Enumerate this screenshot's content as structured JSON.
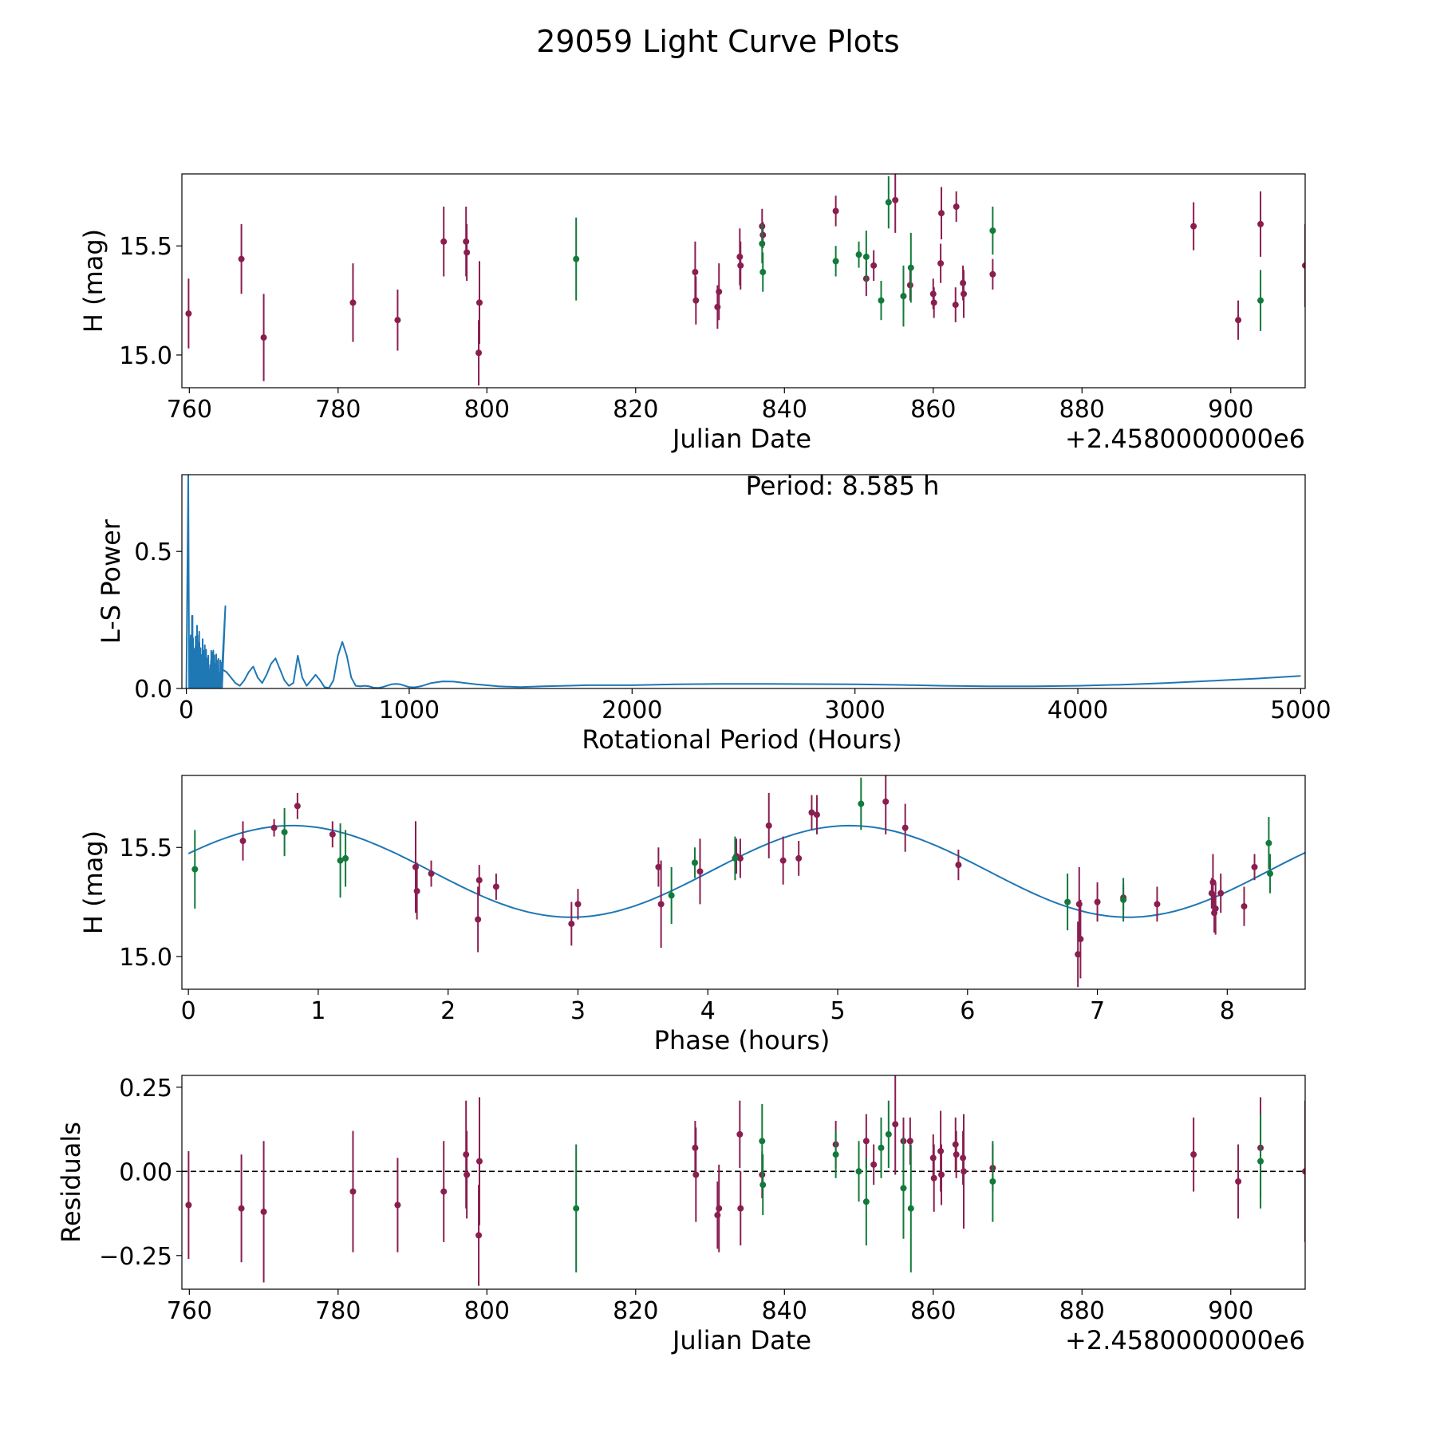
{
  "title": "29059 Light Curve Plots",
  "colors": {
    "red": "#8a1e50",
    "green": "#127a3b",
    "line": "#1f77b4",
    "axis": "#000000"
  },
  "chart_data": [
    {
      "type": "scatter",
      "id": "lightcurve",
      "xlabel": "Julian Date",
      "ylabel": "H (mag)",
      "offset_text": "+2.4580000000e6",
      "xlim": [
        759,
        910
      ],
      "ylim": [
        14.85,
        15.83
      ],
      "xticks": [
        760,
        780,
        800,
        820,
        840,
        860,
        880,
        900
      ],
      "yticks": [
        15.0,
        15.5
      ],
      "xtick_labels": [
        "760",
        "780",
        "800",
        "820",
        "840",
        "860",
        "880",
        "900"
      ],
      "ytick_labels": [
        "15.0",
        "15.5"
      ],
      "series": [
        {
          "name": "red",
          "points": [
            [
              759.9,
              15.19,
              0.16
            ],
            [
              767.0,
              15.44,
              0.16
            ],
            [
              770.0,
              15.08,
              0.2
            ],
            [
              782.0,
              15.24,
              0.18
            ],
            [
              788.0,
              15.16,
              0.14
            ],
            [
              794.2,
              15.52,
              0.16
            ],
            [
              797.2,
              15.52,
              0.16
            ],
            [
              797.3,
              15.47,
              0.13
            ],
            [
              798.9,
              15.01,
              0.15
            ],
            [
              799.0,
              15.24,
              0.19
            ],
            [
              828.0,
              15.38,
              0.14
            ],
            [
              828.1,
              15.25,
              0.11
            ],
            [
              831.0,
              15.22,
              0.1
            ],
            [
              831.2,
              15.29,
              0.13
            ],
            [
              834.0,
              15.45,
              0.13
            ],
            [
              834.1,
              15.41,
              0.11
            ],
            [
              837.0,
              15.59,
              0.08
            ],
            [
              837.1,
              15.55,
              0.06
            ],
            [
              846.9,
              15.66,
              0.07
            ],
            [
              851.0,
              15.35,
              0.08
            ],
            [
              852.0,
              15.41,
              0.07
            ],
            [
              854.9,
              15.71,
              0.15
            ],
            [
              856.0,
              15.27,
              0.07
            ],
            [
              856.9,
              15.32,
              0.07
            ],
            [
              860.0,
              15.28,
              0.07
            ],
            [
              860.1,
              15.24,
              0.07
            ],
            [
              861.0,
              15.42,
              0.09
            ],
            [
              861.1,
              15.65,
              0.12
            ],
            [
              863.0,
              15.23,
              0.08
            ],
            [
              863.1,
              15.68,
              0.07
            ],
            [
              864.0,
              15.33,
              0.08
            ],
            [
              864.1,
              15.28,
              0.11
            ],
            [
              868.0,
              15.37,
              0.07
            ],
            [
              895.0,
              15.59,
              0.11
            ],
            [
              901.0,
              15.16,
              0.09
            ],
            [
              904.0,
              15.6,
              0.15
            ],
            [
              910.0,
              15.41,
              0.19
            ]
          ]
        },
        {
          "name": "green",
          "points": [
            [
              812.0,
              15.44,
              0.19
            ],
            [
              837.0,
              15.51,
              0.09
            ],
            [
              837.1,
              15.38,
              0.09
            ],
            [
              846.9,
              15.43,
              0.07
            ],
            [
              850.0,
              15.46,
              0.06
            ],
            [
              851.0,
              15.45,
              0.12
            ],
            [
              853.0,
              15.25,
              0.09
            ],
            [
              854.0,
              15.7,
              0.12
            ],
            [
              856.0,
              15.27,
              0.14
            ],
            [
              857.0,
              15.4,
              0.16
            ],
            [
              868.0,
              15.57,
              0.11
            ],
            [
              904.0,
              15.25,
              0.14
            ]
          ]
        }
      ]
    },
    {
      "type": "line",
      "id": "periodogram",
      "xlabel": "Rotational Period (Hours)",
      "ylabel": "L-S Power",
      "annotation": "Period: 8.585 h",
      "xlim": [
        -20,
        5020
      ],
      "ylim": [
        0,
        0.78
      ],
      "xticks": [
        0,
        1000,
        2000,
        3000,
        4000,
        5000
      ],
      "yticks": [
        0.0,
        0.5
      ],
      "xtick_labels": [
        "0",
        "1000",
        "2000",
        "3000",
        "4000",
        "5000"
      ],
      "ytick_labels": [
        "0.0",
        "0.5"
      ],
      "smooth_x": [
        160,
        180,
        200,
        220,
        240,
        260,
        280,
        300,
        320,
        340,
        360,
        380,
        400,
        420,
        440,
        460,
        480,
        500,
        520,
        540,
        560,
        580,
        600,
        620,
        640,
        660,
        680,
        700,
        720,
        740,
        760,
        780,
        800,
        820,
        840,
        860,
        880,
        900,
        920,
        940,
        960,
        980,
        1000,
        1020,
        1040,
        1060,
        1080,
        1100,
        1150,
        1200,
        1250,
        1300,
        1400,
        1500,
        1600,
        1700,
        1800,
        2000,
        2200,
        2400,
        2600,
        2800,
        3000,
        3200,
        3400,
        3600,
        3800,
        4000,
        4200,
        4400,
        4600,
        4800,
        5000
      ],
      "smooth_y": [
        0.07,
        0.06,
        0.04,
        0.02,
        0.01,
        0.03,
        0.06,
        0.08,
        0.04,
        0.02,
        0.05,
        0.09,
        0.11,
        0.07,
        0.03,
        0.01,
        0.02,
        0.12,
        0.04,
        0.01,
        0.03,
        0.05,
        0.03,
        0.005,
        0.002,
        0.03,
        0.12,
        0.17,
        0.12,
        0.04,
        0.01,
        0.008,
        0.01,
        0.008,
        0.003,
        0.002,
        0.005,
        0.01,
        0.015,
        0.017,
        0.015,
        0.01,
        0.005,
        0.004,
        0.006,
        0.01,
        0.015,
        0.02,
        0.026,
        0.025,
        0.02,
        0.015,
        0.008,
        0.005,
        0.008,
        0.01,
        0.012,
        0.012,
        0.015,
        0.017,
        0.017,
        0.016,
        0.015,
        0.013,
        0.01,
        0.008,
        0.008,
        0.01,
        0.014,
        0.02,
        0.028,
        0.036,
        0.046
      ],
      "spiky_range": [
        5,
        160
      ],
      "peak": {
        "x": 8.585,
        "y": 0.78
      }
    },
    {
      "type": "scatter",
      "id": "phased",
      "xlabel": "Phase (hours)",
      "ylabel": "H (mag)",
      "xlim": [
        -0.05,
        8.6
      ],
      "ylim": [
        14.85,
        15.83
      ],
      "xticks": [
        0,
        1,
        2,
        3,
        4,
        5,
        6,
        7,
        8
      ],
      "yticks": [
        15.0,
        15.5
      ],
      "xtick_labels": [
        "0",
        "1",
        "2",
        "3",
        "4",
        "5",
        "6",
        "7",
        "8"
      ],
      "ytick_labels": [
        "15.0",
        "15.5"
      ],
      "fit": {
        "mean": 15.39,
        "amplitude": 0.21,
        "peak_phase": 0.8,
        "period": 8.585
      },
      "series": [
        {
          "name": "red",
          "points": [
            [
              0.42,
              15.53,
              0.09
            ],
            [
              0.66,
              15.59,
              0.04
            ],
            [
              0.84,
              15.69,
              0.06
            ],
            [
              1.11,
              15.56,
              0.06
            ],
            [
              1.75,
              15.41,
              0.21
            ],
            [
              1.76,
              15.3,
              0.13
            ],
            [
              1.87,
              15.38,
              0.06
            ],
            [
              2.23,
              15.17,
              0.15
            ],
            [
              2.24,
              15.35,
              0.07
            ],
            [
              2.37,
              15.32,
              0.06
            ],
            [
              2.95,
              15.15,
              0.1
            ],
            [
              3.0,
              15.24,
              0.07
            ],
            [
              3.62,
              15.41,
              0.09
            ],
            [
              3.64,
              15.24,
              0.2
            ],
            [
              3.94,
              15.39,
              0.15
            ],
            [
              4.22,
              15.46,
              0.08
            ],
            [
              4.25,
              15.45,
              0.09
            ],
            [
              4.47,
              15.6,
              0.15
            ],
            [
              4.58,
              15.44,
              0.11
            ],
            [
              4.7,
              15.45,
              0.08
            ],
            [
              4.8,
              15.66,
              0.08
            ],
            [
              4.84,
              15.65,
              0.09
            ],
            [
              5.37,
              15.71,
              0.15
            ],
            [
              5.52,
              15.59,
              0.11
            ],
            [
              5.93,
              15.42,
              0.07
            ],
            [
              6.85,
              15.01,
              0.15
            ],
            [
              6.86,
              15.24,
              0.17
            ],
            [
              6.87,
              15.08,
              0.18
            ],
            [
              7.0,
              15.25,
              0.09
            ],
            [
              7.2,
              15.27,
              0.06
            ],
            [
              7.46,
              15.24,
              0.08
            ],
            [
              7.88,
              15.29,
              0.07
            ],
            [
              7.89,
              15.34,
              0.13
            ],
            [
              7.9,
              15.2,
              0.09
            ],
            [
              7.91,
              15.22,
              0.12
            ],
            [
              7.95,
              15.29,
              0.09
            ],
            [
              8.13,
              15.23,
              0.09
            ],
            [
              8.21,
              15.41,
              0.06
            ]
          ]
        },
        {
          "name": "green",
          "points": [
            [
              0.05,
              15.4,
              0.18
            ],
            [
              0.74,
              15.57,
              0.11
            ],
            [
              1.17,
              15.44,
              0.17
            ],
            [
              1.21,
              15.45,
              0.13
            ],
            [
              3.72,
              15.28,
              0.13
            ],
            [
              3.9,
              15.43,
              0.07
            ],
            [
              4.21,
              15.45,
              0.1
            ],
            [
              5.18,
              15.7,
              0.12
            ],
            [
              6.77,
              15.25,
              0.13
            ],
            [
              7.2,
              15.26,
              0.1
            ],
            [
              8.32,
              15.52,
              0.12
            ],
            [
              8.33,
              15.38,
              0.09
            ]
          ]
        }
      ]
    },
    {
      "type": "scatter",
      "id": "residuals",
      "xlabel": "Julian Date",
      "ylabel": "Residuals",
      "offset_text": "+2.4580000000e6",
      "xlim": [
        759,
        910
      ],
      "ylim": [
        -0.35,
        0.285
      ],
      "xticks": [
        760,
        780,
        800,
        820,
        840,
        860,
        880,
        900
      ],
      "yticks": [
        -0.25,
        0.0,
        0.25
      ],
      "xtick_labels": [
        "760",
        "780",
        "800",
        "820",
        "840",
        "860",
        "880",
        "900"
      ],
      "ytick_labels": [
        "−0.25",
        "0.00",
        "0.25"
      ],
      "reference_line": 0.0,
      "series": [
        {
          "name": "red",
          "points": [
            [
              759.9,
              -0.1,
              0.16
            ],
            [
              767.0,
              -0.11,
              0.16
            ],
            [
              770.0,
              -0.12,
              0.21
            ],
            [
              782.0,
              -0.06,
              0.18
            ],
            [
              788.0,
              -0.1,
              0.14
            ],
            [
              794.2,
              -0.06,
              0.15
            ],
            [
              797.2,
              0.05,
              0.16
            ],
            [
              797.3,
              -0.01,
              0.13
            ],
            [
              798.9,
              -0.19,
              0.15
            ],
            [
              799.0,
              0.03,
              0.19
            ],
            [
              828.0,
              0.07,
              0.08
            ],
            [
              828.1,
              -0.01,
              0.14
            ],
            [
              831.0,
              -0.13,
              0.1
            ],
            [
              831.2,
              -0.11,
              0.13
            ],
            [
              834.0,
              0.11,
              0.1
            ],
            [
              834.1,
              -0.11,
              0.11
            ],
            [
              837.0,
              -0.01,
              0.07
            ],
            [
              846.9,
              0.08,
              0.07
            ],
            [
              851.0,
              0.09,
              0.08
            ],
            [
              852.0,
              0.02,
              0.06
            ],
            [
              854.9,
              0.14,
              0.15
            ],
            [
              856.0,
              0.09,
              0.07
            ],
            [
              856.9,
              0.09,
              0.07
            ],
            [
              860.0,
              0.04,
              0.07
            ],
            [
              860.1,
              -0.02,
              0.1
            ],
            [
              861.0,
              0.06,
              0.12
            ],
            [
              861.1,
              -0.01,
              0.09
            ],
            [
              863.0,
              0.08,
              0.08
            ],
            [
              863.1,
              0.05,
              0.07
            ],
            [
              864.0,
              0.04,
              0.08
            ],
            [
              864.1,
              0.0,
              0.17
            ],
            [
              868.0,
              0.01,
              0.07
            ],
            [
              895.0,
              0.05,
              0.11
            ],
            [
              901.0,
              -0.03,
              0.11
            ],
            [
              904.0,
              0.07,
              0.15
            ],
            [
              910.0,
              0.0,
              0.21
            ]
          ]
        },
        {
          "name": "green",
          "points": [
            [
              812.0,
              -0.11,
              0.19
            ],
            [
              837.0,
              0.09,
              0.11
            ],
            [
              837.1,
              -0.04,
              0.09
            ],
            [
              846.9,
              0.05,
              0.07
            ],
            [
              850.0,
              0.0,
              0.09
            ],
            [
              851.0,
              -0.09,
              0.13
            ],
            [
              853.0,
              0.07,
              0.09
            ],
            [
              854.0,
              0.11,
              0.1
            ],
            [
              856.0,
              -0.05,
              0.15
            ],
            [
              857.0,
              -0.11,
              0.19
            ],
            [
              868.0,
              -0.03,
              0.12
            ],
            [
              904.0,
              0.03,
              0.14
            ]
          ]
        }
      ]
    }
  ]
}
